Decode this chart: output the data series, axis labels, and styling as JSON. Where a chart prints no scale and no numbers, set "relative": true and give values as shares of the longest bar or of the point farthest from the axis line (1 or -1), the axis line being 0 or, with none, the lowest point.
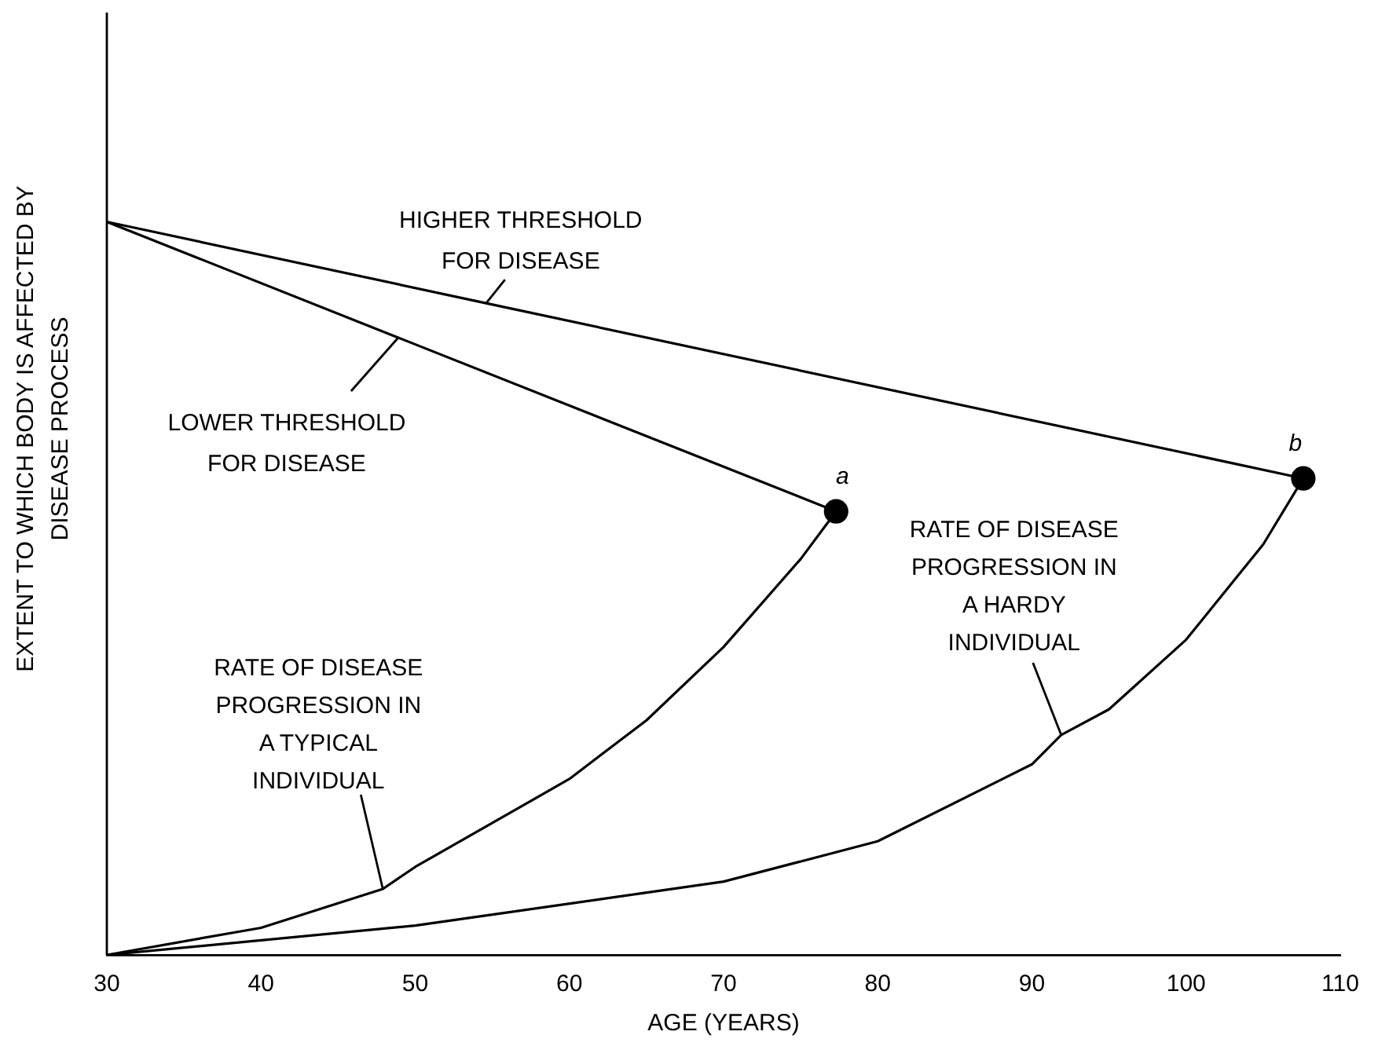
{
  "chart_data": {
    "type": "line",
    "xlabel": "AGE (YEARS)",
    "ylabel": "EXTENT TO WHICH BODY IS AFFECTED BY\nDISEASE PROCESS",
    "relative": true,
    "xlim": [
      30,
      110
    ],
    "xticks": [
      30,
      40,
      50,
      60,
      70,
      80,
      90,
      100,
      110
    ],
    "grid": false,
    "legend": false,
    "marker": "none",
    "line_style": "solid",
    "series": [
      {
        "color": "#000000",
        "x": [
          30,
          54.6,
          107.6
        ],
        "values": [
          1,
          0.889,
          0.65
        ]
      },
      {
        "color": "#000000",
        "x": [
          30,
          48.9,
          77.3
        ],
        "values": [
          1,
          0.842,
          0.605
        ]
      },
      {
        "color": "#000000",
        "x": [
          30,
          40,
          47.9,
          50,
          60,
          65,
          70,
          75,
          77.3
        ],
        "values": [
          0,
          0.037,
          0.09,
          0.12,
          0.24,
          0.32,
          0.42,
          0.54,
          0.605
        ]
      },
      {
        "color": "#000000",
        "x": [
          30,
          50,
          70,
          80,
          90,
          91.9,
          95,
          100,
          105,
          107.6
        ],
        "values": [
          0,
          0.04,
          0.1,
          0.155,
          0.26,
          0.3,
          0.335,
          0.43,
          0.56,
          0.65
        ]
      },
      {
        "type": "scatter",
        "marker": "circle",
        "color": "#000000",
        "x": [
          77.3,
          107.6
        ],
        "values": [
          0.605,
          0.65
        ]
      }
    ],
    "annotations": [
      {
        "text": "HIGHER THRESHOLD\nFOR DISEASE",
        "x": 54.6,
        "y": 0.889
      },
      {
        "text": "LOWER THRESHOLD\nFOR DISEASE",
        "x": 48.9,
        "y": 0.842
      },
      {
        "text": "RATE OF DISEASE\nPROGRESSION IN\nA TYPICAL\nINDIVIDUAL",
        "x": 47.9,
        "y": 0.09
      },
      {
        "text": "RATE OF DISEASE\nPROGRESSION IN\nA HARDY\nINDIVIDUAL",
        "x": 91.9,
        "y": 0.3
      },
      {
        "text": "a",
        "x": 77.3,
        "y": 0.605
      },
      {
        "text": "b",
        "x": 107.6,
        "y": 0.65
      }
    ]
  }
}
